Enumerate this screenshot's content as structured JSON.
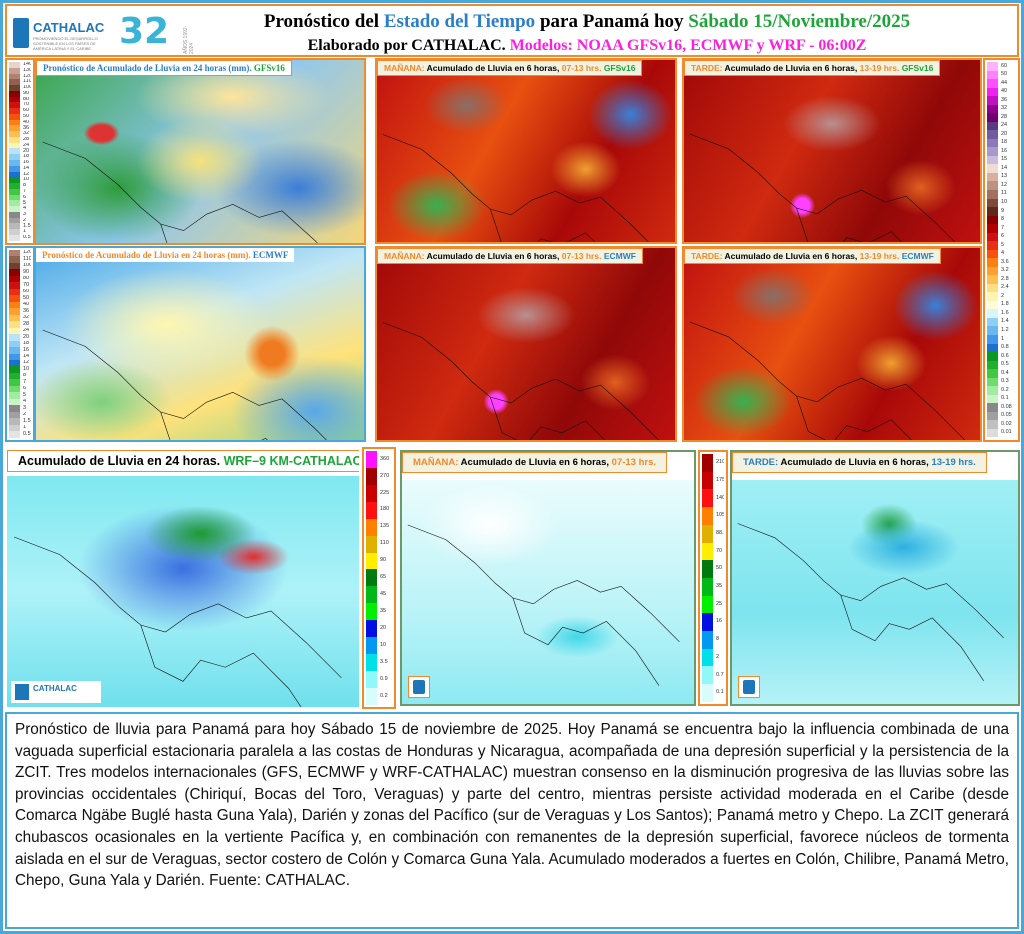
{
  "header": {
    "logo_name": "CATHALAC",
    "logo_tagline": "PROMOVIENDO EL DESARROLLO SOSTENIBLE EN LOS PAÍSES DE AMÉRICA LATINA Y EL CARIBE",
    "logo_number": "32",
    "logo_years": "AÑOS 1992-2024",
    "title_a": "Pronóstico del ",
    "title_b": "Estado del Tiempo",
    "title_c": " para Panamá hoy ",
    "title_d": "Sábado 15/Noviembre/2025",
    "subtitle_a": "Elaborado por CATHALAC.  ",
    "subtitle_b": "Modelos: NOAA GFSv16, ECMWF y WRF - 06:00Z"
  },
  "panels": {
    "gfs24": {
      "a": "Pronóstico de Acumulado de Lluvia en 24 horas (mm). ",
      "b": "GFSv16"
    },
    "gfs_am": {
      "a": "MAÑANA: ",
      "b": "Acumulado de Lluvia en 6 horas, ",
      "c": " 07-13 hrs. ",
      "d": "GFSv16"
    },
    "gfs_pm": {
      "a": "TARDE: ",
      "b": "Acumulado de Lluvia en 6 horas, ",
      "c": " 13-19 hrs. ",
      "d": "GFSv16"
    },
    "ecm24": {
      "a": "Pronóstico de Acumulado de Lluvia en 24 horas (mm). ",
      "b": "ECMWF"
    },
    "ecm_am": {
      "a": "MAÑANA: ",
      "b": "Acumulado de Lluvia en 6 horas, ",
      "c": " 07-13 hrs. ",
      "d": "ECMWF"
    },
    "ecm_pm": {
      "a": "TARDE: ",
      "b": "Acumulado de Lluvia en 6 horas, ",
      "c": " 13-19 hrs. ",
      "d": "ECMWF"
    },
    "wrf24": {
      "a": "Acumulado de Lluvia en 24 horas. ",
      "b": "WRF–9 KM-CATHALAC"
    },
    "wrf_am": {
      "a": "MAÑANA: ",
      "b": "Acumulado de Lluvia en 6 horas, ",
      "c": " 07-13 hrs."
    },
    "wrf_pm": {
      "a": "TARDE: ",
      "b": "Acumulado de Lluvia en 6 horas, ",
      "c": " 13-19 hrs."
    },
    "wrf_logo": "CATHALAC"
  },
  "legends": {
    "gfs24": {
      "labels": [
        "140",
        "130",
        "120",
        "110",
        "100",
        "90",
        "80",
        "70",
        "60",
        "50",
        "40",
        "36",
        "32",
        "28",
        "24",
        "20",
        "18",
        "16",
        "14",
        "12",
        "10",
        "8",
        "7",
        "6",
        "5",
        "4",
        "3",
        "2",
        "1.5",
        "1",
        "0.5"
      ],
      "colors": [
        "#e8d4cc",
        "#c8a090",
        "#b08070",
        "#906050",
        "#704030",
        "#8a0000",
        "#b00000",
        "#d01010",
        "#e83010",
        "#f85010",
        "#fa8010",
        "#fca030",
        "#fdc050",
        "#fde080",
        "#fff4b0",
        "#b8e4f8",
        "#90cff5",
        "#6ab8f0",
        "#4098e8",
        "#1e70d0",
        "#0a9a20",
        "#20b030",
        "#40c840",
        "#70dc70",
        "#a0eca0",
        "#c8f4c8",
        "#888",
        "#a0a0a0",
        "#b8b8b8",
        "#cfcfcf",
        "#e4e4e4"
      ]
    },
    "ecm24": {
      "labels": [
        "120",
        "110",
        "100",
        "90",
        "80",
        "70",
        "60",
        "50",
        "40",
        "36",
        "32",
        "28",
        "24",
        "20",
        "18",
        "16",
        "14",
        "12",
        "10",
        "8",
        "7",
        "6",
        "5",
        "4",
        "3",
        "2",
        "1.5",
        "1",
        "0.5"
      ],
      "colors": [
        "#b08070",
        "#906050",
        "#704030",
        "#8a0000",
        "#b00000",
        "#d01010",
        "#e83010",
        "#f85010",
        "#fa8010",
        "#fca030",
        "#fdc050",
        "#fde080",
        "#fff4b0",
        "#b8e4f8",
        "#90cff5",
        "#6ab8f0",
        "#4098e8",
        "#1e70d0",
        "#0a9a20",
        "#20b030",
        "#40c840",
        "#70dc70",
        "#a0eca0",
        "#c8f4c8",
        "#888",
        "#a0a0a0",
        "#b8b8b8",
        "#cfcfcf",
        "#e4e4e4"
      ]
    },
    "six": {
      "labels": [
        "60",
        "50",
        "44",
        "40",
        "36",
        "32",
        "28",
        "24",
        "20",
        "18",
        "16",
        "15",
        "14",
        "13",
        "12",
        "11",
        "10",
        "9",
        "8",
        "7",
        "6",
        "5",
        "4",
        "3.6",
        "3.2",
        "2.8",
        "2.4",
        "2",
        "1.8",
        "1.6",
        "1.4",
        "1.2",
        "1",
        "0.8",
        "0.6",
        "0.5",
        "0.4",
        "0.3",
        "0.2",
        "0.1",
        "0.08",
        "0.05",
        "0.02",
        "0.01"
      ],
      "colors": [
        "#ffb0ff",
        "#ff80ff",
        "#ff50ff",
        "#f020f0",
        "#c010c0",
        "#900090",
        "#700070",
        "#5a3a80",
        "#705aa0",
        "#8a78b8",
        "#a898cc",
        "#c8bce0",
        "#f0dcd0",
        "#d8b0a0",
        "#c09080",
        "#a07060",
        "#804838",
        "#602818",
        "#8a0000",
        "#b00000",
        "#d01010",
        "#e83010",
        "#f85010",
        "#fa8010",
        "#fca030",
        "#fdc050",
        "#fde080",
        "#fff4b0",
        "#fffad8",
        "#d8f4fc",
        "#90cff5",
        "#6ab8f0",
        "#4098e8",
        "#1e70d0",
        "#0a9a20",
        "#20b030",
        "#40c840",
        "#70dc70",
        "#a0eca0",
        "#c8f4c8",
        "#888",
        "#a0a0a0",
        "#c0c0c0",
        "#dcdcdc"
      ]
    },
    "wrf24": {
      "labels": [
        "360",
        "270",
        "225",
        "180",
        "135",
        "110",
        "90",
        "65",
        "45",
        "35",
        "20",
        "10",
        "3.5",
        "0.9",
        "0.2"
      ],
      "colors": [
        "#ff10ff",
        "#a00000",
        "#c80000",
        "#ff1010",
        "#ff8000",
        "#e0b000",
        "#ffee00",
        "#007a10",
        "#00b818",
        "#00f000",
        "#0010e0",
        "#0098f0",
        "#00e0e8",
        "#90f8f8",
        "#d8fcfc"
      ]
    },
    "wrf6": {
      "labels": [
        "210",
        "175",
        "140",
        "105",
        "88.2",
        "70",
        "50",
        "35",
        "25",
        "16",
        "8",
        "2",
        "0.7",
        "0.1"
      ],
      "colors": [
        "#a00000",
        "#c80000",
        "#ff1010",
        "#ff8000",
        "#e0b000",
        "#ffee00",
        "#007a10",
        "#00b818",
        "#00f000",
        "#0010e0",
        "#0098f0",
        "#00e0e8",
        "#90f8f8",
        "#d8fcfc"
      ]
    }
  },
  "description": "Pronóstico de lluvia para Panamá para hoy Sábado 15 de noviembre de 2025. Hoy Panamá se encuentra bajo la influencia combinada de una vaguada superficial estacionaria paralela a las costas de Honduras y Nicaragua, acompañada de una depresión superficial y la persistencia de la ZCIT. Tres modelos internacionales (GFS, ECMWF y WRF-CATHALAC) muestran consenso en la disminución progresiva de las lluvias sobre las provincias occidentales (Chiriquí, Bocas del Toro, Veraguas) y parte del centro, mientras persiste actividad moderada en el Caribe (desde Comarca Ngäbe Buglé hasta Guna Yala), Darién y zonas del Pacífico (sur de Veraguas y Los Santos); Panamá metro y Chepo. La ZCIT generará chubascos ocasionales en la vertiente Pacífica y, en combinación con remanentes de la depresión superficial, favorece núcleos de tormenta aislada en el sur de Veraguas, sector costero de Colón y Comarca Guna Yala. Acumulado moderados a fuertes en Colón, Chilibre, Panamá Metro, Chepo, Guna Yala y Darién. Fuente: CATHALAC."
}
